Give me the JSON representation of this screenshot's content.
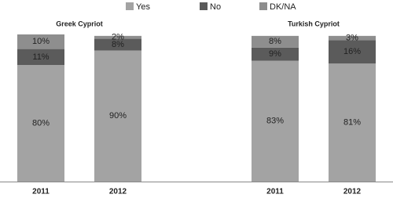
{
  "chart_data": {
    "type": "stacked_bar",
    "groups": [
      "Greek Cypriot",
      "Turkish Cypriot"
    ],
    "categories": [
      "2011",
      "2012",
      "2011",
      "2012"
    ],
    "series": [
      {
        "name": "Yes",
        "color": "#a3a3a3",
        "values": [
          80,
          90,
          83,
          81
        ],
        "value_labels": [
          "80%",
          "90%",
          "83%",
          "81%"
        ]
      },
      {
        "name": "No",
        "color": "#5b5b5b",
        "values": [
          11,
          8,
          9,
          16
        ],
        "value_labels": [
          "11%",
          "8%",
          "9%",
          "16%"
        ]
      },
      {
        "name": "DK/NA",
        "color": "#8e8e8e",
        "values": [
          10,
          2,
          8,
          3
        ],
        "value_labels": [
          "10%",
          "2%",
          "8%",
          "3%"
        ]
      }
    ],
    "legend": "top"
  }
}
